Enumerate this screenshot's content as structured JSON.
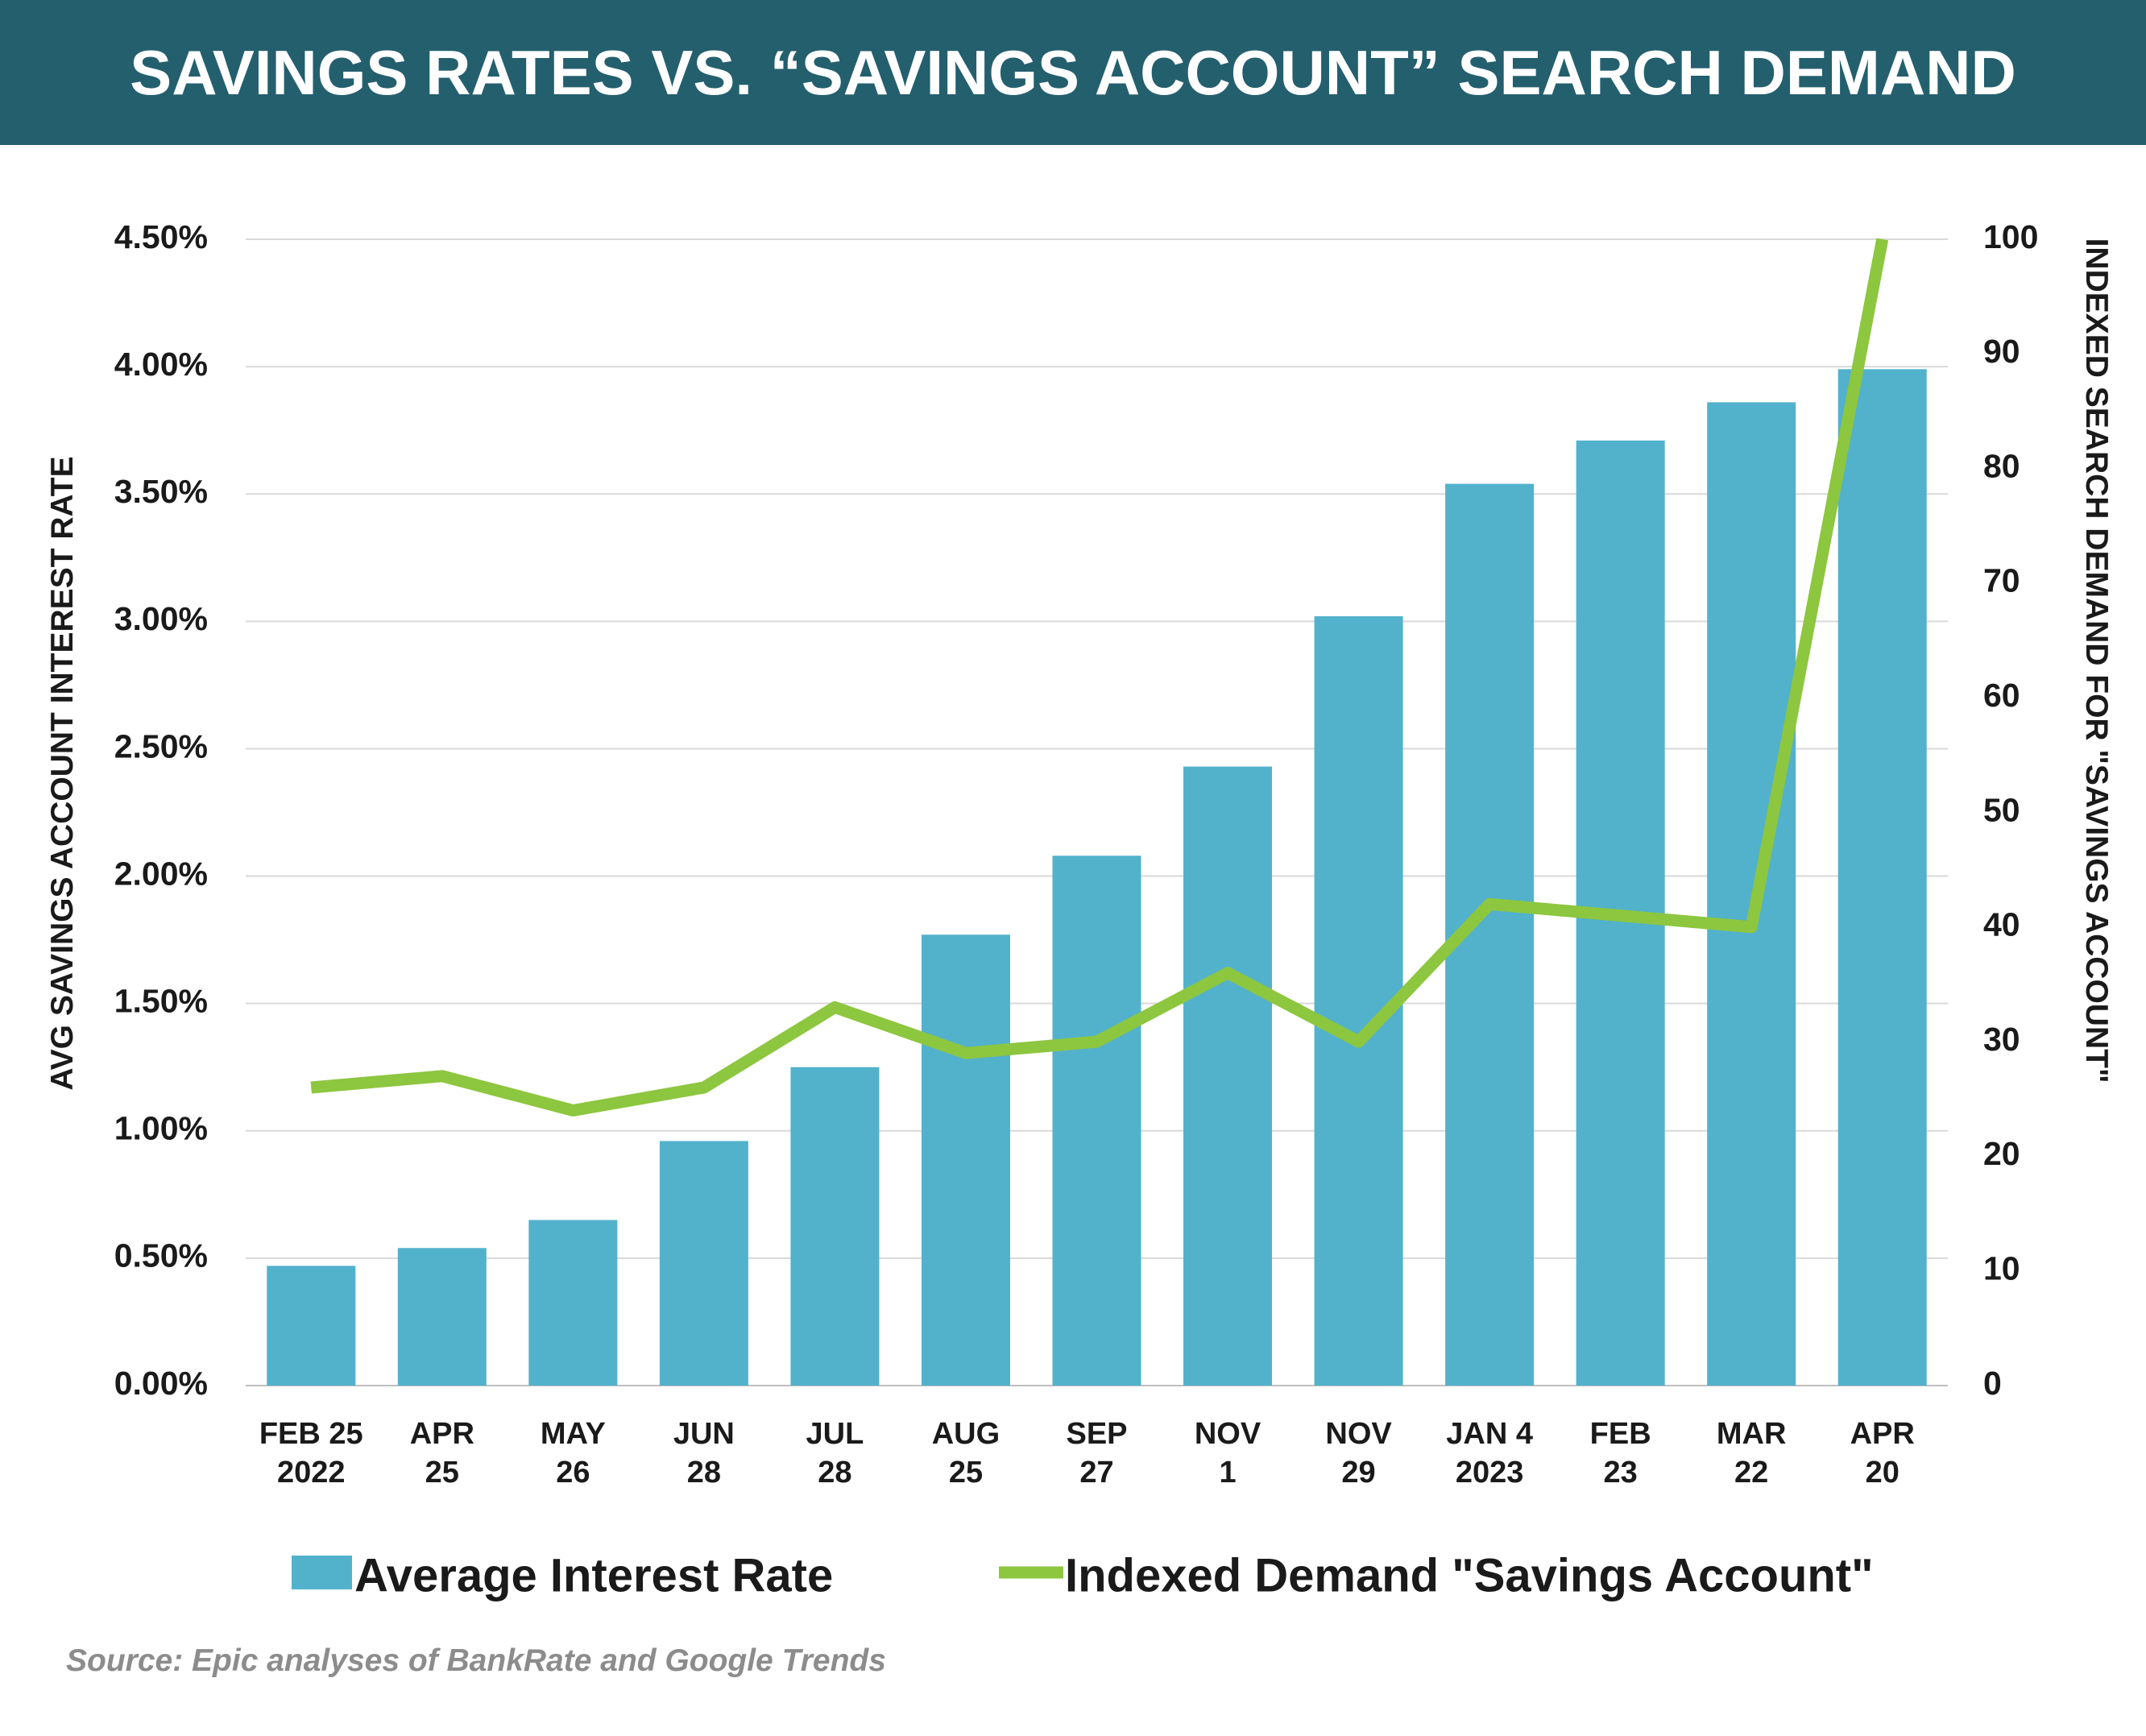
{
  "header": {
    "title": "SAVINGS RATES VS. “SAVINGS ACCOUNT” SEARCH DEMAND"
  },
  "source": "Source: Epic analyses of BankRate and Google Trends",
  "colors": {
    "header_bg": "#245f6e",
    "bar": "#52b2cc",
    "line": "#8dc63f",
    "grid": "#d9d9d9",
    "text": "#1a1a1a",
    "source": "#8c8c8c"
  },
  "chart_data": {
    "type": "bar+line",
    "categories": [
      [
        "FEB 25",
        "2022"
      ],
      [
        "APR",
        "25"
      ],
      [
        "MAY",
        "26"
      ],
      [
        "JUN",
        "28"
      ],
      [
        "JUL",
        "28"
      ],
      [
        "AUG",
        "25"
      ],
      [
        "SEP",
        "27"
      ],
      [
        "NOV",
        "1"
      ],
      [
        "NOV",
        "29"
      ],
      [
        "JAN 4",
        "2023"
      ],
      [
        "FEB",
        "23"
      ],
      [
        "MAR",
        "22"
      ],
      [
        "APR",
        "20"
      ]
    ],
    "series": [
      {
        "name": "Average Interest Rate",
        "type": "bar",
        "axis": "left",
        "values": [
          0.47,
          0.54,
          0.65,
          0.96,
          1.25,
          1.77,
          2.08,
          2.43,
          3.02,
          3.54,
          3.71,
          3.86,
          3.99
        ]
      },
      {
        "name": "Indexed Demand \"Savings Account\"",
        "type": "line",
        "axis": "right",
        "values": [
          26,
          27,
          24,
          26,
          33,
          29,
          30,
          36,
          30,
          42,
          41,
          40,
          100
        ]
      }
    ],
    "y_left": {
      "label": "AVG SAVINGS ACCOUNT INTEREST RATE",
      "min": 0,
      "max": 4.5,
      "ticks": [
        "0.00%",
        "0.50%",
        "1.00%",
        "1.50%",
        "2.00%",
        "2.50%",
        "3.00%",
        "3.50%",
        "4.00%",
        "4.50%"
      ]
    },
    "y_right": {
      "label": "INDEXED SEARCH DEMAND FOR \"SAVINGS ACCOUNT\"",
      "min": 0,
      "max": 100,
      "ticks": [
        "0",
        "10",
        "20",
        "30",
        "40",
        "50",
        "60",
        "70",
        "80",
        "90",
        "100"
      ]
    },
    "grid": true,
    "legend_position": "bottom"
  }
}
